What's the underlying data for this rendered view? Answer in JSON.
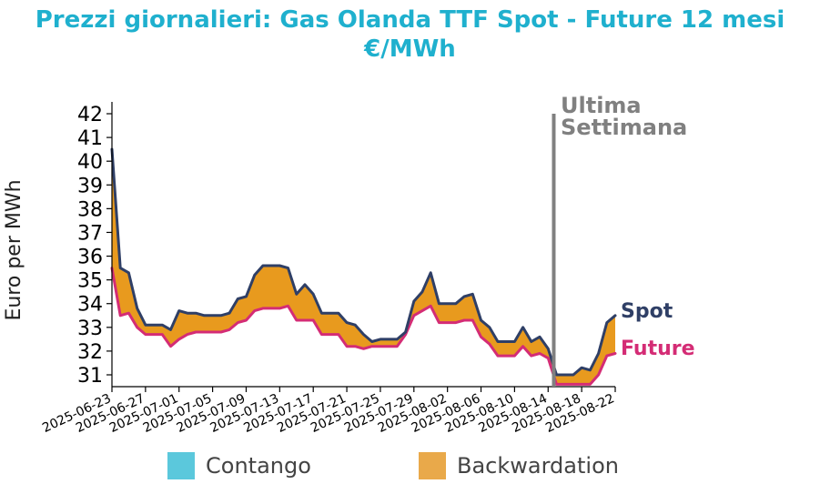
{
  "title_line1": "Prezzi giornalieri: Gas Olanda TTF Spot - Future 12 mesi",
  "title_line2": "€/MWh",
  "chart_data": {
    "type": "area",
    "ylabel": "Euro per MWh",
    "xlabel": "",
    "ylim": [
      30.5,
      42
    ],
    "yticks": [
      31,
      32,
      33,
      34,
      35,
      36,
      37,
      38,
      39,
      40,
      41,
      42
    ],
    "xticks": [
      "2025-06-23",
      "2025-06-27",
      "2025-07-01",
      "2025-07-05",
      "2025-07-09",
      "2025-07-13",
      "2025-07-17",
      "2025-07-21",
      "2025-07-25",
      "2025-07-29",
      "2025-08-02",
      "2025-08-06",
      "2025-08-10",
      "2025-08-14",
      "2025-08-18",
      "2025-08-22"
    ],
    "x": [
      "2025-06-23",
      "2025-06-24",
      "2025-06-25",
      "2025-06-26",
      "2025-06-27",
      "2025-06-28",
      "2025-06-29",
      "2025-06-30",
      "2025-07-01",
      "2025-07-02",
      "2025-07-03",
      "2025-07-04",
      "2025-07-05",
      "2025-07-06",
      "2025-07-07",
      "2025-07-08",
      "2025-07-09",
      "2025-07-10",
      "2025-07-11",
      "2025-07-12",
      "2025-07-13",
      "2025-07-14",
      "2025-07-15",
      "2025-07-16",
      "2025-07-17",
      "2025-07-18",
      "2025-07-19",
      "2025-07-20",
      "2025-07-21",
      "2025-07-22",
      "2025-07-23",
      "2025-07-24",
      "2025-07-25",
      "2025-07-26",
      "2025-07-27",
      "2025-07-28",
      "2025-07-29",
      "2025-07-30",
      "2025-07-31",
      "2025-08-01",
      "2025-08-02",
      "2025-08-03",
      "2025-08-04",
      "2025-08-05",
      "2025-08-06",
      "2025-08-07",
      "2025-08-08",
      "2025-08-09",
      "2025-08-10",
      "2025-08-11",
      "2025-08-12",
      "2025-08-13",
      "2025-08-14",
      "2025-08-15",
      "2025-08-16",
      "2025-08-17",
      "2025-08-18",
      "2025-08-19",
      "2025-08-20",
      "2025-08-21",
      "2025-08-22"
    ],
    "series": [
      {
        "name": "Spot",
        "color": "#2f3f66",
        "values": [
          40.5,
          35.5,
          35.3,
          33.8,
          33.1,
          33.1,
          33.1,
          32.9,
          33.7,
          33.6,
          33.6,
          33.5,
          33.5,
          33.5,
          33.6,
          34.2,
          34.3,
          35.2,
          35.6,
          35.6,
          35.6,
          35.5,
          34.4,
          34.8,
          34.4,
          33.6,
          33.6,
          33.6,
          33.2,
          33.1,
          32.7,
          32.4,
          32.5,
          32.5,
          32.5,
          32.8,
          34.1,
          34.5,
          35.3,
          34.0,
          34.0,
          34.0,
          34.3,
          34.4,
          33.3,
          33.0,
          32.4,
          32.4,
          32.4,
          33.0,
          32.4,
          32.6,
          32.1,
          31.0,
          31.0,
          31.0,
          31.3,
          31.2,
          31.9,
          33.2,
          33.5
        ]
      },
      {
        "name": "Future",
        "color": "#d42c75",
        "values": [
          35.5,
          33.5,
          33.6,
          33.0,
          32.7,
          32.7,
          32.7,
          32.2,
          32.5,
          32.7,
          32.8,
          32.8,
          32.8,
          32.8,
          32.9,
          33.2,
          33.3,
          33.7,
          33.8,
          33.8,
          33.8,
          33.9,
          33.3,
          33.3,
          33.3,
          32.7,
          32.7,
          32.7,
          32.2,
          32.2,
          32.1,
          32.2,
          32.2,
          32.2,
          32.2,
          32.7,
          33.5,
          33.7,
          33.9,
          33.2,
          33.2,
          33.2,
          33.3,
          33.3,
          32.6,
          32.3,
          31.8,
          31.8,
          31.8,
          32.2,
          31.8,
          31.9,
          31.7,
          30.6,
          30.6,
          30.6,
          30.6,
          30.6,
          31.0,
          31.8,
          31.9
        ]
      }
    ],
    "annotation": "Ultima\nSettimana",
    "annotation_line1": "Ultima",
    "annotation_line2": "Settimana",
    "annotation_date": "2025-08-15",
    "legend_placement": "bottom",
    "grid": false,
    "legend": [
      {
        "label": "Contango",
        "color": "#5bc8dc"
      },
      {
        "label": "Backwardation",
        "color": "#e89a1e"
      }
    ]
  }
}
